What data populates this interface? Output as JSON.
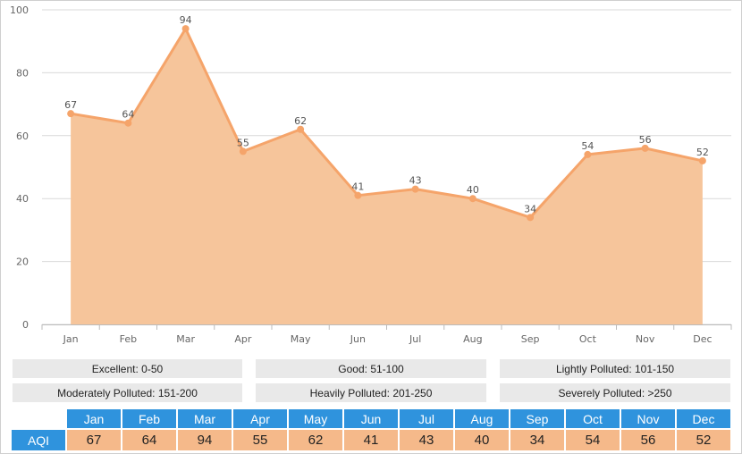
{
  "chart_data": {
    "type": "area",
    "categories": [
      "Jan",
      "Feb",
      "Mar",
      "Apr",
      "May",
      "Jun",
      "Jul",
      "Aug",
      "Sep",
      "Oct",
      "Nov",
      "Dec"
    ],
    "values": [
      67,
      64,
      94,
      55,
      62,
      41,
      43,
      40,
      34,
      54,
      56,
      52
    ],
    "ylim": [
      0,
      100
    ],
    "yticks": [
      0,
      20,
      40,
      60,
      80,
      100
    ],
    "grid": true,
    "colors": {
      "line": "#f5a46a",
      "fill": "#f6c59b",
      "grid": "#d9d9d9"
    }
  },
  "legend": [
    [
      "Excellent: 0-50",
      "Good: 51-100",
      "Lightly Polluted: 101-150"
    ],
    [
      "Moderately Polluted: 151-200",
      "Heavily Polluted: 201-250",
      "Severely Polluted: >250"
    ]
  ],
  "table": {
    "row_label": "AQI",
    "months": [
      "Jan",
      "Feb",
      "Mar",
      "Apr",
      "May",
      "Jun",
      "Jul",
      "Aug",
      "Sep",
      "Oct",
      "Nov",
      "Dec"
    ],
    "values": [
      67,
      64,
      94,
      55,
      62,
      41,
      43,
      40,
      34,
      54,
      56,
      52
    ],
    "header_color": "#2f93dd",
    "value_color": "#f5b98a"
  }
}
